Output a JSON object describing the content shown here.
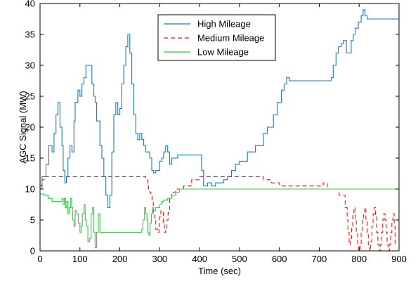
{
  "chart_data": {
    "type": "line",
    "title": "",
    "xlabel": "Time (sec)",
    "ylabel": "AGC Signal (MW)",
    "xlim": [
      0,
      900
    ],
    "ylim": [
      0,
      40
    ],
    "xticks": [
      0,
      100,
      200,
      300,
      400,
      500,
      600,
      700,
      800,
      900
    ],
    "yticks": [
      0,
      5,
      10,
      15,
      20,
      25,
      30,
      35,
      40
    ],
    "grid": false,
    "legend_position": "top-center",
    "series": [
      {
        "name": "High Mileage",
        "color": "#1f77b4",
        "style": "solid",
        "step": true,
        "points": [
          [
            0,
            10
          ],
          [
            5,
            12
          ],
          [
            15,
            14
          ],
          [
            22,
            17
          ],
          [
            30,
            16
          ],
          [
            35,
            19
          ],
          [
            40,
            22
          ],
          [
            45,
            24
          ],
          [
            50,
            20
          ],
          [
            55,
            17
          ],
          [
            58,
            13
          ],
          [
            62,
            11
          ],
          [
            66,
            12
          ],
          [
            70,
            15
          ],
          [
            75,
            17
          ],
          [
            80,
            16
          ],
          [
            85,
            21
          ],
          [
            88,
            24
          ],
          [
            95,
            26
          ],
          [
            100,
            25
          ],
          [
            105,
            27
          ],
          [
            110,
            28
          ],
          [
            115,
            30
          ],
          [
            125,
            30
          ],
          [
            130,
            27
          ],
          [
            135,
            25
          ],
          [
            138,
            24
          ],
          [
            142,
            21
          ],
          [
            150,
            17
          ],
          [
            155,
            15
          ],
          [
            160,
            12
          ],
          [
            165,
            9
          ],
          [
            170,
            7
          ],
          [
            175,
            9
          ],
          [
            180,
            16
          ],
          [
            185,
            22
          ],
          [
            190,
            24
          ],
          [
            195,
            22
          ],
          [
            200,
            23
          ],
          [
            205,
            27
          ],
          [
            210,
            30
          ],
          [
            215,
            33
          ],
          [
            220,
            35
          ],
          [
            225,
            32
          ],
          [
            230,
            27
          ],
          [
            235,
            22
          ],
          [
            240,
            19
          ],
          [
            245,
            18
          ],
          [
            250,
            19
          ],
          [
            255,
            18
          ],
          [
            260,
            17
          ],
          [
            265,
            16
          ],
          [
            270,
            16
          ],
          [
            275,
            15
          ],
          [
            280,
            13
          ],
          [
            285,
            12.6
          ],
          [
            290,
            13
          ],
          [
            300,
            14.5
          ],
          [
            305,
            15
          ],
          [
            310,
            16
          ],
          [
            315,
            17
          ],
          [
            320,
            16
          ],
          [
            325,
            14
          ],
          [
            330,
            15
          ],
          [
            345,
            15.5
          ],
          [
            355,
            15.5
          ],
          [
            360,
            15.5
          ],
          [
            400,
            15.5
          ],
          [
            405,
            13
          ],
          [
            410,
            10.5
          ],
          [
            420,
            11
          ],
          [
            430,
            10.5
          ],
          [
            440,
            11
          ],
          [
            450,
            11
          ],
          [
            460,
            11.5
          ],
          [
            470,
            12
          ],
          [
            480,
            13
          ],
          [
            490,
            14
          ],
          [
            500,
            14.5
          ],
          [
            520,
            16
          ],
          [
            540,
            17
          ],
          [
            560,
            19
          ],
          [
            570,
            20
          ],
          [
            585,
            22
          ],
          [
            595,
            24
          ],
          [
            605,
            26
          ],
          [
            612,
            27
          ],
          [
            618,
            28
          ],
          [
            625,
            27.5
          ],
          [
            640,
            27.5
          ],
          [
            720,
            27.5
          ],
          [
            730,
            28
          ],
          [
            735,
            30
          ],
          [
            742,
            32
          ],
          [
            748,
            33
          ],
          [
            755,
            33.5
          ],
          [
            760,
            34
          ],
          [
            768,
            32
          ],
          [
            775,
            32
          ],
          [
            780,
            34
          ],
          [
            785,
            35
          ],
          [
            790,
            36
          ],
          [
            798,
            37
          ],
          [
            805,
            38
          ],
          [
            810,
            39
          ],
          [
            815,
            38
          ],
          [
            820,
            37.5
          ],
          [
            830,
            37.5
          ],
          [
            900,
            37.5
          ]
        ]
      },
      {
        "name": "Medium Mileage",
        "color": "#e41a1c",
        "style": "dashed",
        "step": true,
        "points": [
          [
            0,
            10.5
          ],
          [
            5,
            11.5
          ],
          [
            10,
            12
          ],
          [
            260,
            12
          ],
          [
            265,
            11.5
          ],
          [
            270,
            10.5
          ],
          [
            272,
            9.8
          ],
          [
            275,
            9.5
          ],
          [
            278,
            9
          ],
          [
            281,
            8
          ],
          [
            284,
            6
          ],
          [
            287,
            5
          ],
          [
            290,
            3.5
          ],
          [
            295,
            3
          ],
          [
            298,
            4
          ],
          [
            300,
            5.5
          ],
          [
            303,
            6.5
          ],
          [
            306,
            6.5
          ],
          [
            309,
            4.5
          ],
          [
            312,
            3
          ],
          [
            315,
            3.5
          ],
          [
            318,
            5
          ],
          [
            321,
            6.2
          ],
          [
            325,
            8.5
          ],
          [
            330,
            9.5
          ],
          [
            340,
            10
          ],
          [
            360,
            10.5
          ],
          [
            380,
            11.5
          ],
          [
            400,
            12
          ],
          [
            530,
            12
          ],
          [
            560,
            11.5
          ],
          [
            580,
            11
          ],
          [
            600,
            10.5
          ],
          [
            620,
            10.5
          ],
          [
            700,
            10.5
          ],
          [
            710,
            11
          ],
          [
            720,
            10
          ],
          [
            730,
            10
          ],
          [
            740,
            10
          ],
          [
            750,
            9
          ],
          [
            760,
            9
          ],
          [
            765,
            7
          ],
          [
            770,
            5
          ],
          [
            772,
            3
          ],
          [
            775,
            1
          ],
          [
            778,
            2
          ],
          [
            781,
            4
          ],
          [
            784,
            6
          ],
          [
            787,
            7
          ],
          [
            790,
            5
          ],
          [
            793,
            3
          ],
          [
            796,
            1
          ],
          [
            799,
            0
          ],
          [
            802,
            1
          ],
          [
            805,
            3
          ],
          [
            808,
            5
          ],
          [
            811,
            6
          ],
          [
            814,
            7
          ],
          [
            817,
            5
          ],
          [
            820,
            3
          ],
          [
            823,
            1
          ],
          [
            826,
            0
          ],
          [
            829,
            1.5
          ],
          [
            832,
            4
          ],
          [
            835,
            6
          ],
          [
            838,
            7
          ],
          [
            841,
            5.5
          ],
          [
            844,
            3
          ],
          [
            847,
            1
          ],
          [
            850,
            0
          ],
          [
            853,
            1
          ],
          [
            856,
            3
          ],
          [
            859,
            5
          ],
          [
            862,
            6
          ],
          [
            865,
            5
          ],
          [
            868,
            3
          ],
          [
            870,
            1
          ],
          [
            873,
            0
          ],
          [
            876,
            1
          ],
          [
            879,
            3
          ],
          [
            882,
            5
          ],
          [
            885,
            6
          ],
          [
            888,
            4
          ],
          [
            890,
            1
          ]
        ]
      },
      {
        "name": "Low Mileage",
        "color": "#2ecc40",
        "style": "solid",
        "step": true,
        "points": [
          [
            0,
            9.2
          ],
          [
            10,
            9
          ],
          [
            20,
            8.5
          ],
          [
            30,
            8
          ],
          [
            40,
            8
          ],
          [
            50,
            8
          ],
          [
            55,
            8.5
          ],
          [
            58,
            7.5
          ],
          [
            61,
            8.5
          ],
          [
            64,
            7
          ],
          [
            67,
            8
          ],
          [
            70,
            6
          ],
          [
            73,
            7
          ],
          [
            76,
            8.5
          ],
          [
            79,
            7
          ],
          [
            82,
            5
          ],
          [
            85,
            4
          ],
          [
            88,
            6.5
          ],
          [
            92,
            6
          ],
          [
            96,
            4.5
          ],
          [
            100,
            3
          ],
          [
            103,
            4
          ],
          [
            106,
            6
          ],
          [
            110,
            7.5
          ],
          [
            113,
            5
          ],
          [
            116,
            4
          ],
          [
            120,
            1.5
          ],
          [
            124,
            2
          ],
          [
            128,
            6
          ],
          [
            132,
            7
          ],
          [
            135,
            3
          ],
          [
            138,
            0.5
          ],
          [
            142,
            3
          ],
          [
            146,
            6
          ],
          [
            150,
            3
          ],
          [
            160,
            3
          ],
          [
            170,
            3
          ],
          [
            180,
            3
          ],
          [
            190,
            3
          ],
          [
            200,
            3
          ],
          [
            210,
            3
          ],
          [
            220,
            3
          ],
          [
            230,
            3
          ],
          [
            240,
            3
          ],
          [
            250,
            3
          ],
          [
            255,
            3.5
          ],
          [
            258,
            5
          ],
          [
            262,
            7
          ],
          [
            265,
            6
          ],
          [
            268,
            5
          ],
          [
            270,
            3
          ],
          [
            273,
            2.5
          ],
          [
            276,
            4.5
          ],
          [
            279,
            6
          ],
          [
            282,
            7
          ],
          [
            285,
            6.5
          ],
          [
            290,
            7
          ],
          [
            300,
            7.5
          ],
          [
            305,
            8
          ],
          [
            310,
            8.2
          ],
          [
            320,
            8.5
          ],
          [
            330,
            9
          ],
          [
            340,
            9.5
          ],
          [
            350,
            10
          ],
          [
            900,
            10
          ]
        ]
      }
    ]
  }
}
